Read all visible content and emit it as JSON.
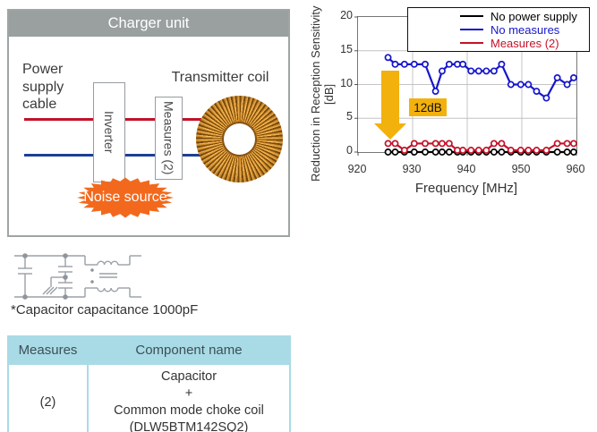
{
  "diagram": {
    "title": "Charger unit",
    "power_supply_cable_label": "Power\nsupply\ncable",
    "inverter_label": "Inverter",
    "measures_label": "Measures (2)",
    "transmitter_coil_label": "Transmitter coil",
    "noise_source_label": "Noise source",
    "colors": {
      "header_bg": "#9aa0a0",
      "cable_top": "#c0122a",
      "cable_bottom": "#1c3f94",
      "noise_orange": "#f2691d"
    }
  },
  "schematic": {
    "note": "*Capacitor capacitance 1000pF"
  },
  "chart_data": {
    "type": "line",
    "title": "",
    "xlabel": "Frequency [MHz]",
    "ylabel": "Reduction in Reception Sensitivity [dB]",
    "xlim": [
      920,
      960
    ],
    "ylim": [
      0,
      20
    ],
    "xticks": [
      920,
      930,
      940,
      950,
      960
    ],
    "yticks": [
      0,
      5,
      10,
      15,
      20
    ],
    "grid": true,
    "legend_position": "top-right",
    "annotation": {
      "text": "12dB",
      "color": "#f2b10d"
    },
    "x": [
      925.5,
      926.8,
      928.5,
      930.3,
      932.3,
      934.2,
      935.4,
      936.7,
      938.2,
      939.2,
      940.7,
      942.1,
      943.5,
      944.9,
      946.3,
      948.0,
      949.8,
      951.2,
      952.7,
      954.5,
      956.5,
      958.3,
      959.5
    ],
    "series": [
      {
        "name": "No power supply",
        "color": "#000000",
        "values": [
          0,
          0,
          0,
          0,
          0,
          0,
          0,
          0,
          0,
          0,
          0,
          0,
          0,
          0,
          0,
          0,
          0,
          0,
          0,
          0,
          0,
          0,
          0
        ]
      },
      {
        "name": "No measures",
        "color": "#1616cc",
        "values": [
          14,
          13,
          13,
          13,
          13,
          9,
          12,
          13,
          13,
          13,
          12,
          12,
          12,
          12,
          13,
          10,
          10,
          10,
          9,
          8,
          11,
          10,
          11
        ]
      },
      {
        "name": "Measures (2)",
        "color": "#c3132a",
        "values": [
          1,
          1,
          0,
          1,
          1,
          1,
          1,
          1,
          0,
          0,
          0,
          0,
          0,
          1,
          1,
          0,
          0,
          0,
          0,
          0,
          1,
          1,
          1
        ]
      }
    ]
  },
  "table": {
    "headers": [
      "Measures",
      "Component name"
    ],
    "rows": [
      [
        "(2)",
        "Capacitor\n+\nCommon mode choke coil\n(DLW5BTM142SQ2)"
      ]
    ]
  }
}
